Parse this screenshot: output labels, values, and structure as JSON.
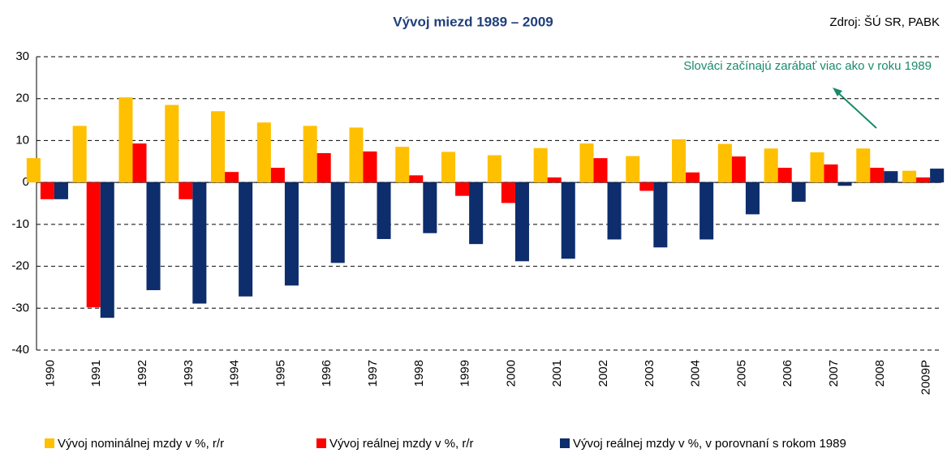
{
  "chart_data": {
    "type": "bar",
    "title": "Vývoj miezd 1989 – 2009",
    "source": "Zdroj: ŠÚ SR, PABK",
    "annotation": "Slováci začínajú zarábať viac ako v roku 1989",
    "categories": [
      "1990",
      "1991",
      "1992",
      "1993",
      "1994",
      "1995",
      "1996",
      "1997",
      "1998",
      "1999",
      "2000",
      "2001",
      "2002",
      "2003",
      "2004",
      "2005",
      "2006",
      "2007",
      "2008",
      "2009P"
    ],
    "series": [
      {
        "name": "Vývoj nominálnej mzdy v %, r/r",
        "color": "#ffc000",
        "values": [
          5.8,
          13.5,
          20.3,
          18.5,
          17,
          14.3,
          13.5,
          13.1,
          8.5,
          7.3,
          6.5,
          8.2,
          9.3,
          6.3,
          10.3,
          9.2,
          8.1,
          7.2,
          8.1,
          2.8
        ]
      },
      {
        "name": "Vývoj reálnej mzdy v %, r/r",
        "color": "#ff0000",
        "values": [
          -4,
          -29.8,
          9.3,
          -4,
          2.5,
          3.5,
          7,
          7.4,
          1.7,
          -3.2,
          -4.9,
          1.2,
          5.8,
          -2,
          2.4,
          6.2,
          3.5,
          4.3,
          3.5,
          1.2
        ]
      },
      {
        "name": "Vývoj reálnej mzdy v %, v porovnaní s rokom 1989",
        "color": "#0d2d6c",
        "values": [
          -4,
          -32.3,
          -25.7,
          -28.9,
          -27.2,
          -24.6,
          -19.2,
          -13.5,
          -12.1,
          -14.7,
          -18.8,
          -18.2,
          -13.6,
          -15.5,
          -13.6,
          -7.6,
          -4.6,
          -0.8,
          2.7,
          3.3
        ]
      }
    ],
    "ylim": [
      -40,
      30
    ],
    "yticks": [
      -40,
      -30,
      -20,
      -10,
      0,
      10,
      20,
      30
    ],
    "grid": true
  }
}
